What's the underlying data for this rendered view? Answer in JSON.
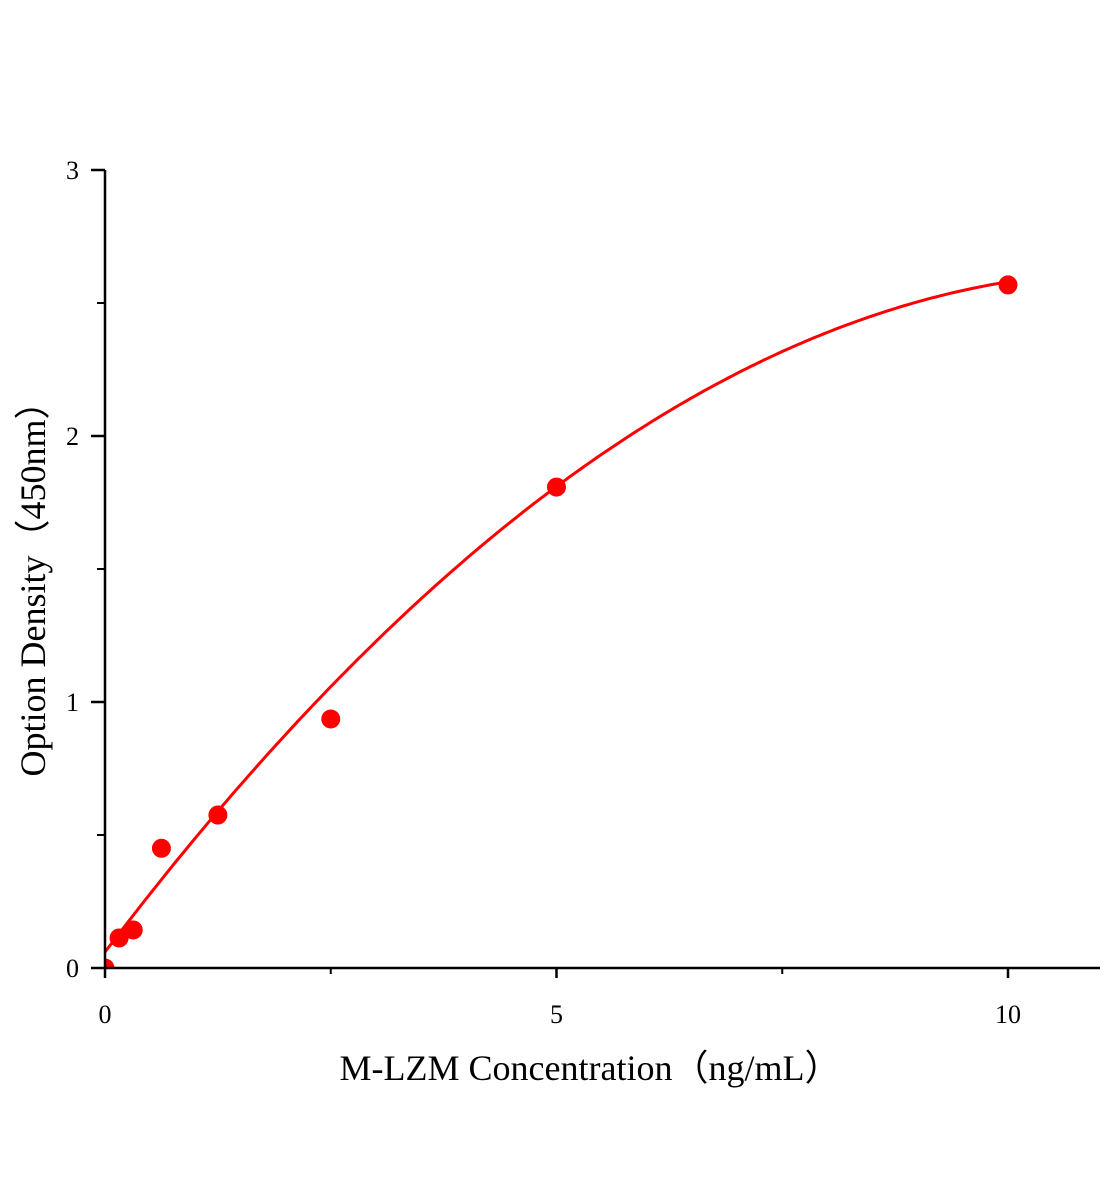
{
  "chart_data": {
    "type": "scatter",
    "title": "",
    "xlabel": "M-LZM Concentration（ng/mL）",
    "ylabel": "Option Density（450nm）",
    "xlim": [
      0,
      11
    ],
    "ylim": [
      0,
      3
    ],
    "xticks": [
      0,
      5,
      10
    ],
    "xtick_labels": [
      "0",
      "5",
      "10"
    ],
    "x_minor_ticks": [
      2.5,
      7.5
    ],
    "yticks": [
      0,
      1,
      2,
      3
    ],
    "ytick_labels": [
      "0",
      "1",
      "2",
      "3"
    ],
    "y_minor_ticks": [
      0.5,
      1.5,
      2.5
    ],
    "grid": false,
    "color": "#ff0000",
    "points": {
      "x": [
        0,
        0.156,
        0.3125,
        0.625,
        1.25,
        2.5,
        5,
        10
      ],
      "y": [
        0,
        0.113,
        0.143,
        0.45,
        0.575,
        0.936,
        1.808,
        2.568
      ]
    },
    "fit_curve": true
  }
}
